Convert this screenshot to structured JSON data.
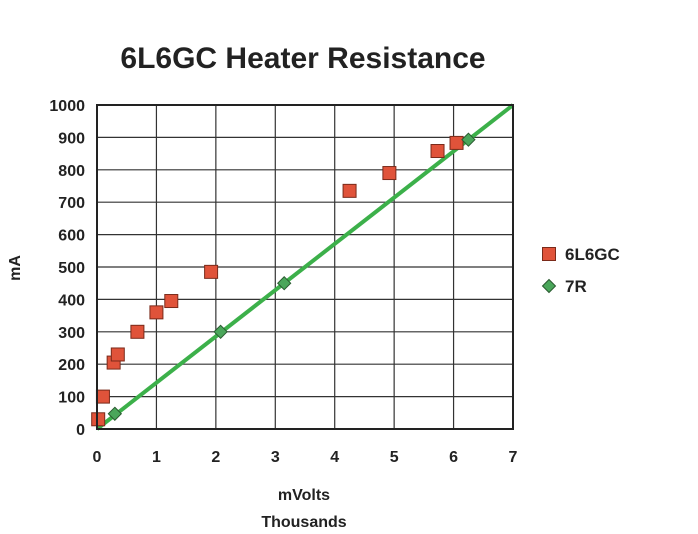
{
  "chart_data": {
    "type": "scatter",
    "title": "6L6GC Heater Resistance",
    "xlabel": "mVolts",
    "xlabel_unit": "Thousands",
    "ylabel": "mA",
    "xlim": [
      0,
      7
    ],
    "ylim": [
      0,
      1000
    ],
    "x_ticks": [
      "0",
      "1",
      "2",
      "3",
      "4",
      "5",
      "6",
      "7"
    ],
    "y_ticks": [
      "0",
      "100",
      "200",
      "300",
      "400",
      "500",
      "600",
      "700",
      "800",
      "900",
      "1000"
    ],
    "grid": true,
    "legend_position": "right",
    "series": [
      {
        "name": "6L6GC",
        "marker": "square",
        "color": "#e0533a",
        "points": [
          {
            "x": 0.02,
            "y": 30
          },
          {
            "x": 0.1,
            "y": 100
          },
          {
            "x": 0.28,
            "y": 205
          },
          {
            "x": 0.35,
            "y": 230
          },
          {
            "x": 0.68,
            "y": 300
          },
          {
            "x": 1.0,
            "y": 360
          },
          {
            "x": 1.25,
            "y": 395
          },
          {
            "x": 1.92,
            "y": 485
          },
          {
            "x": 4.25,
            "y": 735
          },
          {
            "x": 4.92,
            "y": 790
          },
          {
            "x": 5.73,
            "y": 858
          },
          {
            "x": 6.05,
            "y": 883
          }
        ]
      },
      {
        "name": "7R",
        "marker": "diamond",
        "color": "#4aa65a",
        "points": [
          {
            "x": 0.3,
            "y": 47
          },
          {
            "x": 2.08,
            "y": 300
          },
          {
            "x": 3.15,
            "y": 450
          },
          {
            "x": 6.25,
            "y": 893
          }
        ]
      }
    ],
    "trendline": {
      "color": "#3cb04a",
      "points": [
        {
          "x": 0,
          "y": 0
        },
        {
          "x": 7,
          "y": 1000
        }
      ]
    }
  }
}
